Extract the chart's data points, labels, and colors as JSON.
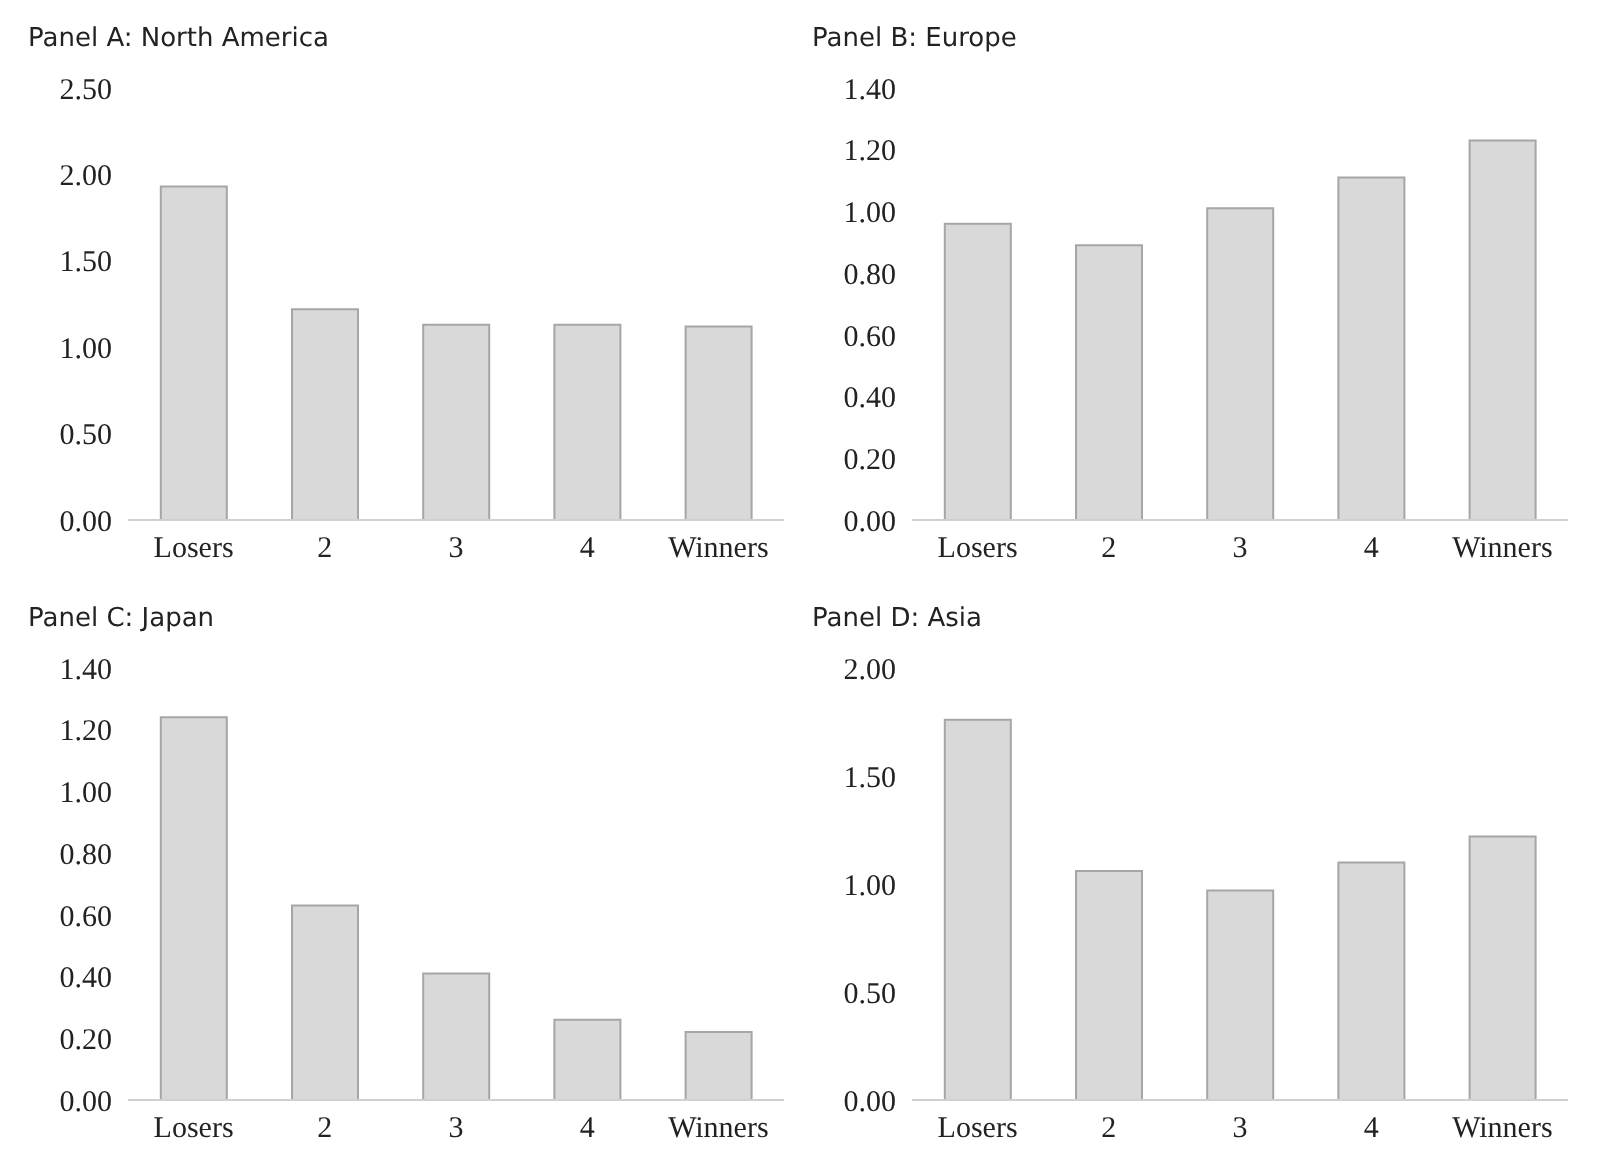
{
  "chart_data": [
    {
      "type": "bar",
      "title": "Panel A: North America",
      "categories": [
        "Losers",
        "2",
        "3",
        "4",
        "Winners"
      ],
      "values": [
        1.93,
        1.22,
        1.13,
        1.13,
        1.12
      ],
      "color": "#d9d9d9",
      "ylim": [
        0,
        2.5
      ],
      "yticks": [
        {
          "value": 0,
          "label": "0.00"
        },
        {
          "value": 0.5,
          "label": "0.50"
        },
        {
          "value": 1,
          "label": "1.00"
        },
        {
          "value": 1.5,
          "label": "1.50"
        },
        {
          "value": 2,
          "label": "2.00"
        },
        {
          "value": 2.5,
          "label": "2.50"
        }
      ],
      "grid": false,
      "legend": false
    },
    {
      "type": "bar",
      "title": "Panel B: Europe",
      "categories": [
        "Losers",
        "2",
        "3",
        "4",
        "Winners"
      ],
      "values": [
        0.96,
        0.89,
        1.01,
        1.11,
        1.23
      ],
      "color": "#d9d9d9",
      "ylim": [
        0,
        1.4
      ],
      "yticks": [
        {
          "value": 0,
          "label": "0.00"
        },
        {
          "value": 0.2,
          "label": "0.20"
        },
        {
          "value": 0.4,
          "label": "0.40"
        },
        {
          "value": 0.6,
          "label": "0.60"
        },
        {
          "value": 0.8,
          "label": "0.80"
        },
        {
          "value": 1,
          "label": "1.00"
        },
        {
          "value": 1.2,
          "label": "1.20"
        },
        {
          "value": 1.4,
          "label": "1.40"
        }
      ],
      "grid": false,
      "legend": false
    },
    {
      "type": "bar",
      "title": "Panel C: Japan",
      "categories": [
        "Losers",
        "2",
        "3",
        "4",
        "Winners"
      ],
      "values": [
        1.24,
        0.63,
        0.41,
        0.26,
        0.22
      ],
      "color": "#d9d9d9",
      "ylim": [
        0,
        1.4
      ],
      "yticks": [
        {
          "value": 0,
          "label": "0.00"
        },
        {
          "value": 0.2,
          "label": "0.20"
        },
        {
          "value": 0.4,
          "label": "0.40"
        },
        {
          "value": 0.6,
          "label": "0.60"
        },
        {
          "value": 0.8,
          "label": "0.80"
        },
        {
          "value": 1,
          "label": "1.00"
        },
        {
          "value": 1.2,
          "label": "1.20"
        },
        {
          "value": 1.4,
          "label": "1.40"
        }
      ],
      "grid": false,
      "legend": false
    },
    {
      "type": "bar",
      "title": "Panel D: Asia",
      "categories": [
        "Losers",
        "2",
        "3",
        "4",
        "Winners"
      ],
      "values": [
        1.76,
        1.06,
        0.97,
        1.1,
        1.22
      ],
      "color": "#d9d9d9",
      "ylim": [
        0,
        2
      ],
      "yticks": [
        {
          "value": 0,
          "label": "0.00"
        },
        {
          "value": 0.5,
          "label": "0.50"
        },
        {
          "value": 1,
          "label": "1.00"
        },
        {
          "value": 1.5,
          "label": "1.50"
        },
        {
          "value": 2,
          "label": "2.00"
        }
      ],
      "grid": false,
      "legend": false
    }
  ]
}
